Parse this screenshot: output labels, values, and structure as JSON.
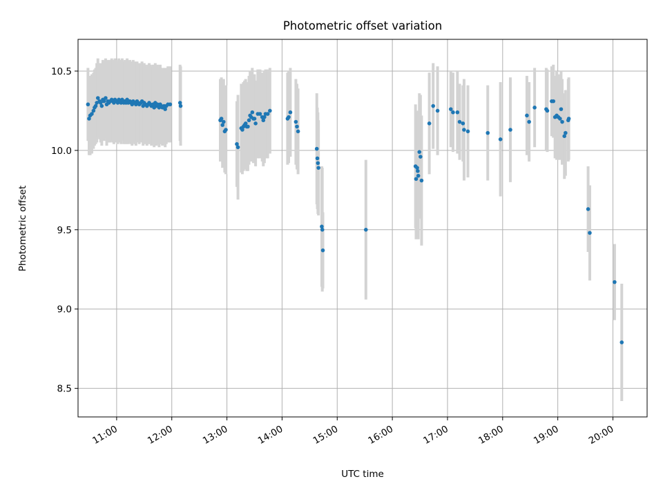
{
  "chart_data": {
    "type": "scatter",
    "title": "Photometric offset variation",
    "xlabel": "UTC time",
    "ylabel": "Photometric offset",
    "x_unit": "hours UTC",
    "xlim": [
      10.3,
      20.62
    ],
    "ylim": [
      8.32,
      10.7
    ],
    "x_ticks": [
      11,
      12,
      13,
      14,
      15,
      16,
      17,
      18,
      19,
      20
    ],
    "x_tick_labels": [
      "11:00",
      "12:00",
      "13:00",
      "14:00",
      "15:00",
      "16:00",
      "17:00",
      "18:00",
      "19:00",
      "20:00"
    ],
    "y_ticks": [
      8.5,
      9.0,
      9.5,
      10.0,
      10.5
    ],
    "y_tick_labels": [
      "8.5",
      "9.0",
      "9.5",
      "10.0",
      "10.5"
    ],
    "grid": true,
    "colors": {
      "point": "#1f77b4",
      "errorbar": "#d3d3d3",
      "grid": "#b0b0b0"
    },
    "series": [
      {
        "points": [
          [
            10.48,
            10.29,
            0.23
          ],
          [
            10.5,
            10.2,
            0.23
          ],
          [
            10.52,
            10.22,
            0.25
          ],
          [
            10.55,
            10.23,
            0.25
          ],
          [
            10.58,
            10.25,
            0.24
          ],
          [
            10.6,
            10.27,
            0.24
          ],
          [
            10.62,
            10.28,
            0.24
          ],
          [
            10.64,
            10.3,
            0.25
          ],
          [
            10.66,
            10.33,
            0.25
          ],
          [
            10.69,
            10.31,
            0.24
          ],
          [
            10.71,
            10.3,
            0.25
          ],
          [
            10.73,
            10.28,
            0.25
          ],
          [
            10.75,
            10.32,
            0.25
          ],
          [
            10.77,
            10.31,
            0.25
          ],
          [
            10.8,
            10.33,
            0.25
          ],
          [
            10.82,
            10.29,
            0.26
          ],
          [
            10.84,
            10.31,
            0.26
          ],
          [
            10.86,
            10.3,
            0.25
          ],
          [
            10.88,
            10.31,
            0.26
          ],
          [
            10.91,
            10.32,
            0.26
          ],
          [
            10.93,
            10.31,
            0.26
          ],
          [
            10.95,
            10.3,
            0.26
          ],
          [
            10.97,
            10.32,
            0.26
          ],
          [
            10.99,
            10.31,
            0.26
          ],
          [
            11.02,
            10.3,
            0.26
          ],
          [
            11.04,
            10.32,
            0.26
          ],
          [
            11.06,
            10.31,
            0.26
          ],
          [
            11.08,
            10.3,
            0.26
          ],
          [
            11.1,
            10.32,
            0.26
          ],
          [
            11.13,
            10.3,
            0.26
          ],
          [
            11.15,
            10.31,
            0.26
          ],
          [
            11.17,
            10.3,
            0.26
          ],
          [
            11.19,
            10.32,
            0.26
          ],
          [
            11.21,
            10.3,
            0.26
          ],
          [
            11.24,
            10.31,
            0.26
          ],
          [
            11.26,
            10.3,
            0.26
          ],
          [
            11.28,
            10.29,
            0.26
          ],
          [
            11.3,
            10.31,
            0.26
          ],
          [
            11.33,
            10.3,
            0.26
          ],
          [
            11.35,
            10.29,
            0.26
          ],
          [
            11.37,
            10.31,
            0.25
          ],
          [
            11.39,
            10.3,
            0.25
          ],
          [
            11.41,
            10.29,
            0.25
          ],
          [
            11.44,
            10.3,
            0.25
          ],
          [
            11.46,
            10.31,
            0.25
          ],
          [
            11.48,
            10.28,
            0.25
          ],
          [
            11.5,
            10.3,
            0.25
          ],
          [
            11.52,
            10.29,
            0.25
          ],
          [
            11.55,
            10.28,
            0.25
          ],
          [
            11.57,
            10.29,
            0.25
          ],
          [
            11.59,
            10.3,
            0.25
          ],
          [
            11.61,
            10.29,
            0.25
          ],
          [
            11.63,
            10.28,
            0.25
          ],
          [
            11.66,
            10.29,
            0.25
          ],
          [
            11.68,
            10.27,
            0.25
          ],
          [
            11.7,
            10.3,
            0.25
          ],
          [
            11.72,
            10.28,
            0.25
          ],
          [
            11.74,
            10.29,
            0.25
          ],
          [
            11.77,
            10.27,
            0.25
          ],
          [
            11.79,
            10.29,
            0.25
          ],
          [
            11.81,
            10.28,
            0.24
          ],
          [
            11.83,
            10.27,
            0.24
          ],
          [
            11.86,
            10.28,
            0.24
          ],
          [
            11.88,
            10.26,
            0.24
          ],
          [
            11.9,
            10.28,
            0.24
          ],
          [
            11.93,
            10.29,
            0.24
          ],
          [
            11.97,
            10.29,
            0.24
          ],
          [
            12.15,
            10.3,
            0.24
          ],
          [
            12.16,
            10.28,
            0.25
          ],
          [
            12.88,
            10.19,
            0.26
          ],
          [
            12.9,
            10.2,
            0.26
          ],
          [
            12.92,
            10.16,
            0.27
          ],
          [
            12.94,
            10.18,
            0.27
          ],
          [
            12.96,
            10.12,
            0.26
          ],
          [
            12.98,
            10.13,
            0.28
          ],
          [
            13.18,
            10.04,
            0.27
          ],
          [
            13.2,
            10.02,
            0.33
          ],
          [
            13.26,
            10.14,
            0.28
          ],
          [
            13.28,
            10.13,
            0.28
          ],
          [
            13.3,
            10.15,
            0.28
          ],
          [
            13.32,
            10.16,
            0.28
          ],
          [
            13.34,
            10.17,
            0.28
          ],
          [
            13.36,
            10.15,
            0.28
          ],
          [
            13.38,
            10.15,
            0.28
          ],
          [
            13.4,
            10.19,
            0.28
          ],
          [
            13.42,
            10.22,
            0.28
          ],
          [
            13.44,
            10.21,
            0.28
          ],
          [
            13.46,
            10.24,
            0.28
          ],
          [
            13.48,
            10.2,
            0.28
          ],
          [
            13.5,
            10.2,
            0.28
          ],
          [
            13.52,
            10.17,
            0.27
          ],
          [
            13.56,
            10.23,
            0.28
          ],
          [
            13.6,
            10.23,
            0.28
          ],
          [
            13.64,
            10.21,
            0.28
          ],
          [
            13.66,
            10.19,
            0.29
          ],
          [
            13.68,
            10.21,
            0.29
          ],
          [
            13.7,
            10.23,
            0.28
          ],
          [
            13.74,
            10.23,
            0.28
          ],
          [
            13.78,
            10.25,
            0.27
          ],
          [
            14.1,
            10.2,
            0.29
          ],
          [
            14.12,
            10.21,
            0.29
          ],
          [
            14.15,
            10.24,
            0.28
          ],
          [
            14.25,
            10.18,
            0.27
          ],
          [
            14.27,
            10.15,
            0.27
          ],
          [
            14.29,
            10.12,
            0.27
          ],
          [
            14.63,
            10.01,
            0.35
          ],
          [
            14.64,
            9.95,
            0.32
          ],
          [
            14.65,
            9.92,
            0.32
          ],
          [
            14.66,
            9.89,
            0.3
          ],
          [
            14.72,
            9.52,
            0.38
          ],
          [
            14.73,
            9.5,
            0.39
          ],
          [
            14.74,
            9.37,
            0.24
          ],
          [
            15.52,
            9.5,
            0.44
          ],
          [
            16.42,
            9.9,
            0.39
          ],
          [
            16.43,
            9.82,
            0.38
          ],
          [
            16.45,
            9.89,
            0.36
          ],
          [
            16.46,
            9.87,
            0.35
          ],
          [
            16.47,
            9.84,
            0.4
          ],
          [
            16.49,
            9.99,
            0.37
          ],
          [
            16.51,
            9.96,
            0.39
          ],
          [
            16.53,
            9.81,
            0.41
          ],
          [
            16.67,
            10.17,
            0.32
          ],
          [
            16.74,
            10.28,
            0.27
          ],
          [
            16.82,
            10.25,
            0.28
          ],
          [
            17.06,
            10.26,
            0.24
          ],
          [
            17.1,
            10.24,
            0.25
          ],
          [
            17.18,
            10.24,
            0.26
          ],
          [
            17.22,
            10.18,
            0.24
          ],
          [
            17.28,
            10.17,
            0.24
          ],
          [
            17.3,
            10.13,
            0.32
          ],
          [
            17.37,
            10.12,
            0.29
          ],
          [
            17.73,
            10.11,
            0.3
          ],
          [
            17.96,
            10.07,
            0.36
          ],
          [
            18.14,
            10.13,
            0.33
          ],
          [
            18.44,
            10.22,
            0.25
          ],
          [
            18.48,
            10.18,
            0.25
          ],
          [
            18.58,
            10.27,
            0.25
          ],
          [
            18.79,
            10.26,
            0.26
          ],
          [
            18.81,
            10.25,
            0.26
          ],
          [
            18.89,
            10.31,
            0.22
          ],
          [
            18.92,
            10.31,
            0.23
          ],
          [
            18.95,
            10.21,
            0.26
          ],
          [
            18.98,
            10.22,
            0.28
          ],
          [
            19.01,
            10.21,
            0.27
          ],
          [
            19.04,
            10.2,
            0.26
          ],
          [
            19.06,
            10.26,
            0.24
          ],
          [
            19.08,
            10.18,
            0.27
          ],
          [
            19.12,
            10.09,
            0.27
          ],
          [
            19.14,
            10.11,
            0.27
          ],
          [
            19.19,
            10.19,
            0.26
          ],
          [
            19.2,
            10.2,
            0.26
          ],
          [
            19.55,
            9.63,
            0.27
          ],
          [
            19.58,
            9.48,
            0.3
          ],
          [
            20.03,
            9.17,
            0.24
          ],
          [
            20.16,
            8.79,
            0.37
          ]
        ]
      }
    ]
  }
}
